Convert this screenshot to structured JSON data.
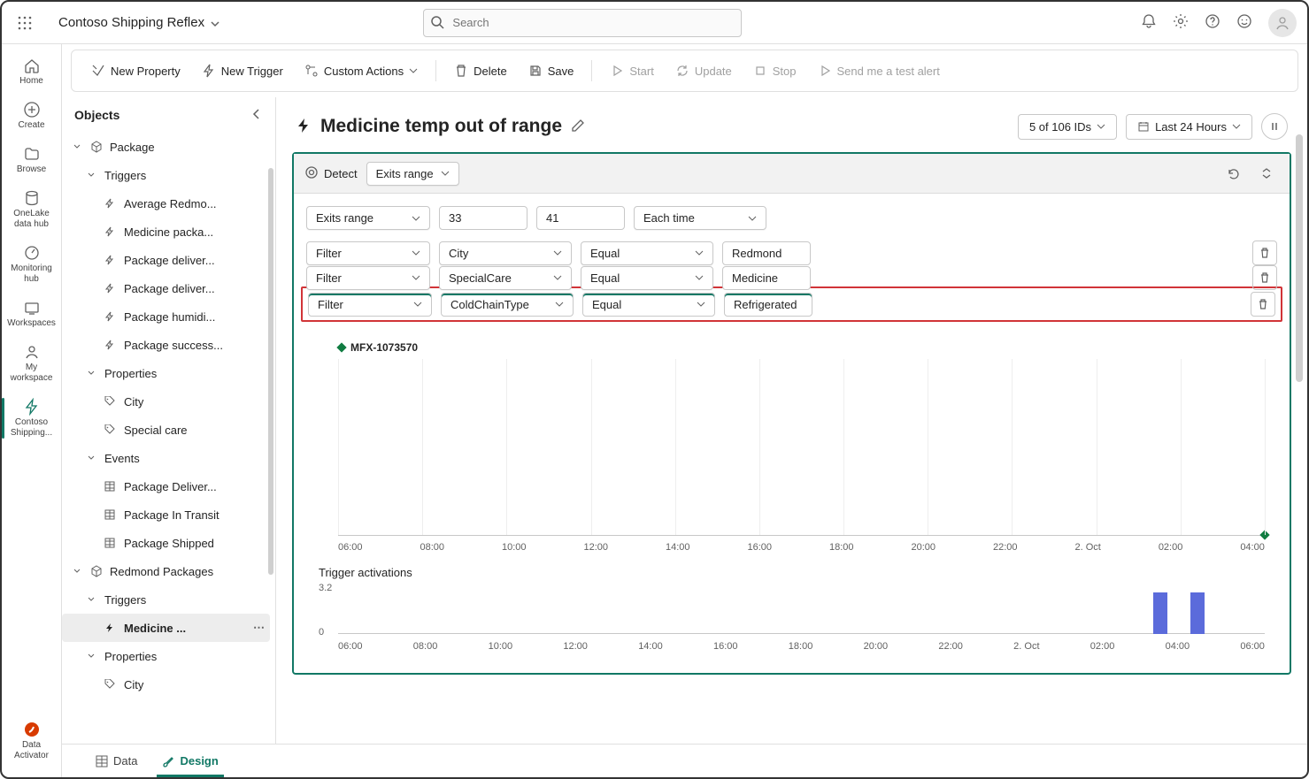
{
  "topbar": {
    "app_title": "Contoso Shipping Reflex",
    "search_placeholder": "Search"
  },
  "leftrail": {
    "items": [
      {
        "label": "Home"
      },
      {
        "label": "Create"
      },
      {
        "label": "Browse"
      },
      {
        "label": "OneLake data hub"
      },
      {
        "label": "Monitoring hub"
      },
      {
        "label": "Workspaces"
      },
      {
        "label": "My workspace"
      },
      {
        "label": "Contoso Shipping..."
      }
    ],
    "bottom_label": "Data Activator"
  },
  "toolbar": {
    "new_property": "New Property",
    "new_trigger": "New Trigger",
    "custom_actions": "Custom Actions",
    "delete": "Delete",
    "save": "Save",
    "start": "Start",
    "update": "Update",
    "stop": "Stop",
    "send_test": "Send me a test alert"
  },
  "objects": {
    "title": "Objects",
    "tree": {
      "package": {
        "label": "Package",
        "triggers_label": "Triggers",
        "triggers": [
          "Average Redmo...",
          "Medicine packa...",
          "Package deliver...",
          "Package deliver...",
          "Package humidi...",
          "Package success..."
        ],
        "properties_label": "Properties",
        "properties": [
          "City",
          "Special care"
        ],
        "events_label": "Events",
        "events": [
          "Package Deliver...",
          "Package In Transit",
          "Package Shipped"
        ]
      },
      "redmond": {
        "label": "Redmond Packages",
        "triggers_label": "Triggers",
        "selected_trigger": "Medicine ...",
        "properties_label": "Properties",
        "properties": [
          "City"
        ]
      }
    }
  },
  "canvas": {
    "title": "Medicine temp out of range",
    "ids_label": "5 of 106 IDs",
    "time_label": "Last 24 Hours"
  },
  "detect": {
    "label": "Detect",
    "mode": "Exits range",
    "range_row": {
      "type": "Exits range",
      "low": "33",
      "high": "41",
      "freq": "Each time"
    },
    "filters": [
      {
        "kind": "Filter",
        "field": "City",
        "op": "Equal",
        "value": "Redmond",
        "highlighted": false
      },
      {
        "kind": "Filter",
        "field": "SpecialCare",
        "op": "Equal",
        "value": "Medicine",
        "highlighted": false
      },
      {
        "kind": "Filter",
        "field": "ColdChainType",
        "op": "Equal",
        "value": "Refrigerated",
        "highlighted": true
      }
    ]
  },
  "chart": {
    "series_name": "MFX-1073570",
    "series_color": "#107c41",
    "ticks": [
      "06:00",
      "08:00",
      "10:00",
      "12:00",
      "14:00",
      "16:00",
      "18:00",
      "20:00",
      "22:00",
      "2. Oct",
      "02:00",
      "04:00"
    ],
    "grid_color": "#eeeeee",
    "axis_color": "#c8c8c8"
  },
  "activations": {
    "title": "Trigger activations",
    "ymax_label": "3.2",
    "yzero_label": "0",
    "ticks": [
      "06:00",
      "08:00",
      "10:00",
      "12:00",
      "14:00",
      "16:00",
      "18:00",
      "20:00",
      "22:00",
      "2. Oct",
      "02:00",
      "04:00",
      "06:00"
    ],
    "bars": [
      {
        "pos_pct": 88,
        "height_pct": 85
      },
      {
        "pos_pct": 92,
        "height_pct": 85
      }
    ],
    "bar_color": "#5b6bdb"
  },
  "footer": {
    "data": "Data",
    "design": "Design"
  },
  "colors": {
    "accent": "#117865",
    "highlight_border": "#d13438"
  }
}
